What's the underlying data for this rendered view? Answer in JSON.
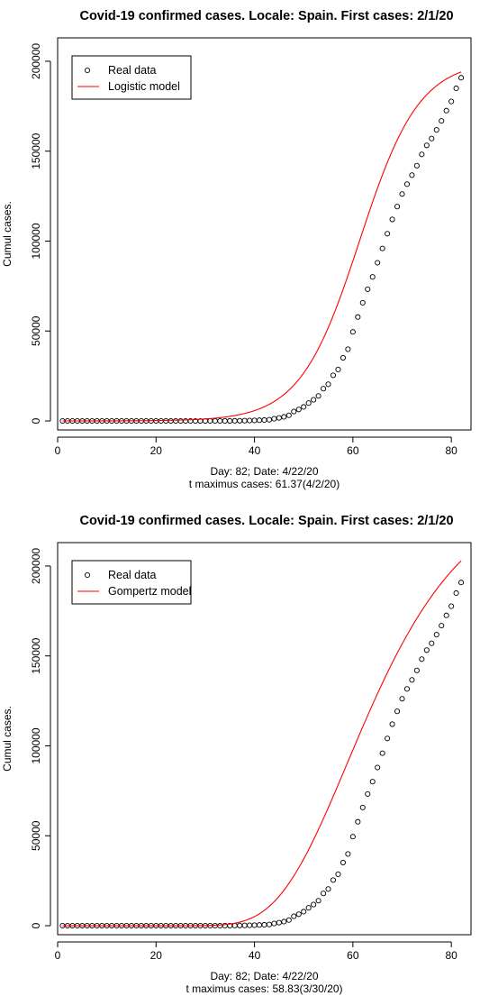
{
  "charts": [
    {
      "title": "Covid-19 confirmed cases. Locale: Spain. First cases: 2/1/20",
      "xlabel_line1": "Day: 82; Date: 4/22/20",
      "xlabel_line2": "t maximus cases: 61.37(4/2/20)",
      "ylabel": "Cumul cases.",
      "legend_real": "Real data",
      "legend_model": "Logistic model",
      "model_color": "#ff0000"
    },
    {
      "title": "Covid-19 confirmed cases. Locale: Spain. First cases: 2/1/20",
      "xlabel_line1": "Day: 82; Date: 4/22/20",
      "xlabel_line2": "t maximus cases: 58.83(3/30/20)",
      "ylabel": "Cumul cases.",
      "legend_real": "Real data",
      "legend_model": "Gompertz model",
      "model_color": "#ff0000"
    }
  ],
  "chart_data": [
    {
      "type": "scatter",
      "xlim": [
        0,
        84
      ],
      "ylim": [
        -5000,
        213000
      ],
      "xticks": [
        0,
        20,
        40,
        60,
        80
      ],
      "yticks": [
        0,
        50000,
        100000,
        150000,
        200000
      ],
      "legend_position": "top-left",
      "series": [
        {
          "name": "Real data",
          "marker": "open-circle",
          "x": [
            1,
            2,
            3,
            4,
            5,
            6,
            7,
            8,
            9,
            10,
            11,
            12,
            13,
            14,
            15,
            16,
            17,
            18,
            19,
            20,
            21,
            22,
            23,
            24,
            25,
            26,
            27,
            28,
            29,
            30,
            31,
            32,
            33,
            34,
            35,
            36,
            37,
            38,
            39,
            40,
            41,
            42,
            43,
            44,
            45,
            46,
            47,
            48,
            49,
            50,
            51,
            52,
            53,
            54,
            55,
            56,
            57,
            58,
            59,
            60,
            61,
            62,
            63,
            64,
            65,
            66,
            67,
            68,
            69,
            70,
            71,
            72,
            73,
            74,
            75,
            76,
            77,
            78,
            79,
            80,
            81,
            82
          ],
          "y": [
            1,
            1,
            1,
            1,
            1,
            1,
            1,
            1,
            1,
            2,
            2,
            2,
            2,
            2,
            2,
            2,
            2,
            2,
            2,
            2,
            2,
            2,
            2,
            2,
            2,
            2,
            2,
            2,
            2,
            2,
            6,
            13,
            15,
            32,
            45,
            84,
            120,
            165,
            228,
            282,
            401,
            525,
            674,
            1231,
            1695,
            2277,
            3146,
            5232,
            6391,
            7798,
            9942,
            11748,
            13910,
            17963,
            20410,
            25374,
            28603,
            35136,
            39885,
            49515,
            57786,
            65719,
            73235,
            80110,
            87956,
            95923,
            104118,
            112065,
            119199,
            126168,
            131646,
            136675,
            141942,
            148220,
            153222,
            157022,
            161852,
            166831,
            172541,
            177644,
            184948,
            190839
          ]
        },
        {
          "name": "Logistic model",
          "line_color": "#ff0000",
          "model": "logistic",
          "params": {
            "K": 200500,
            "t0": 61.37,
            "r": 0.165
          }
        }
      ]
    },
    {
      "type": "scatter",
      "xlim": [
        0,
        84
      ],
      "ylim": [
        -5000,
        213000
      ],
      "xticks": [
        0,
        20,
        40,
        60,
        80
      ],
      "yticks": [
        0,
        50000,
        100000,
        150000,
        200000
      ],
      "legend_position": "top-left",
      "series": [
        {
          "name": "Real data",
          "marker": "open-circle",
          "x": [
            1,
            2,
            3,
            4,
            5,
            6,
            7,
            8,
            9,
            10,
            11,
            12,
            13,
            14,
            15,
            16,
            17,
            18,
            19,
            20,
            21,
            22,
            23,
            24,
            25,
            26,
            27,
            28,
            29,
            30,
            31,
            32,
            33,
            34,
            35,
            36,
            37,
            38,
            39,
            40,
            41,
            42,
            43,
            44,
            45,
            46,
            47,
            48,
            49,
            50,
            51,
            52,
            53,
            54,
            55,
            56,
            57,
            58,
            59,
            60,
            61,
            62,
            63,
            64,
            65,
            66,
            67,
            68,
            69,
            70,
            71,
            72,
            73,
            74,
            75,
            76,
            77,
            78,
            79,
            80,
            81,
            82
          ],
          "y": [
            1,
            1,
            1,
            1,
            1,
            1,
            1,
            1,
            1,
            2,
            2,
            2,
            2,
            2,
            2,
            2,
            2,
            2,
            2,
            2,
            2,
            2,
            2,
            2,
            2,
            2,
            2,
            2,
            2,
            2,
            6,
            13,
            15,
            32,
            45,
            84,
            120,
            165,
            228,
            282,
            401,
            525,
            674,
            1231,
            1695,
            2277,
            3146,
            5232,
            6391,
            7798,
            9942,
            11748,
            13910,
            17963,
            20410,
            25374,
            28603,
            35136,
            39885,
            49515,
            57786,
            65719,
            73235,
            80110,
            87956,
            95923,
            104118,
            112065,
            119199,
            126168,
            131646,
            136675,
            141942,
            148220,
            153222,
            157022,
            161852,
            166831,
            172541,
            177644,
            184948,
            190839
          ]
        },
        {
          "name": "Gompertz model",
          "line_color": "#ff0000",
          "model": "gompertz",
          "params": {
            "K": 245000,
            "t0": 58.83,
            "r": 0.072
          }
        }
      ]
    }
  ]
}
